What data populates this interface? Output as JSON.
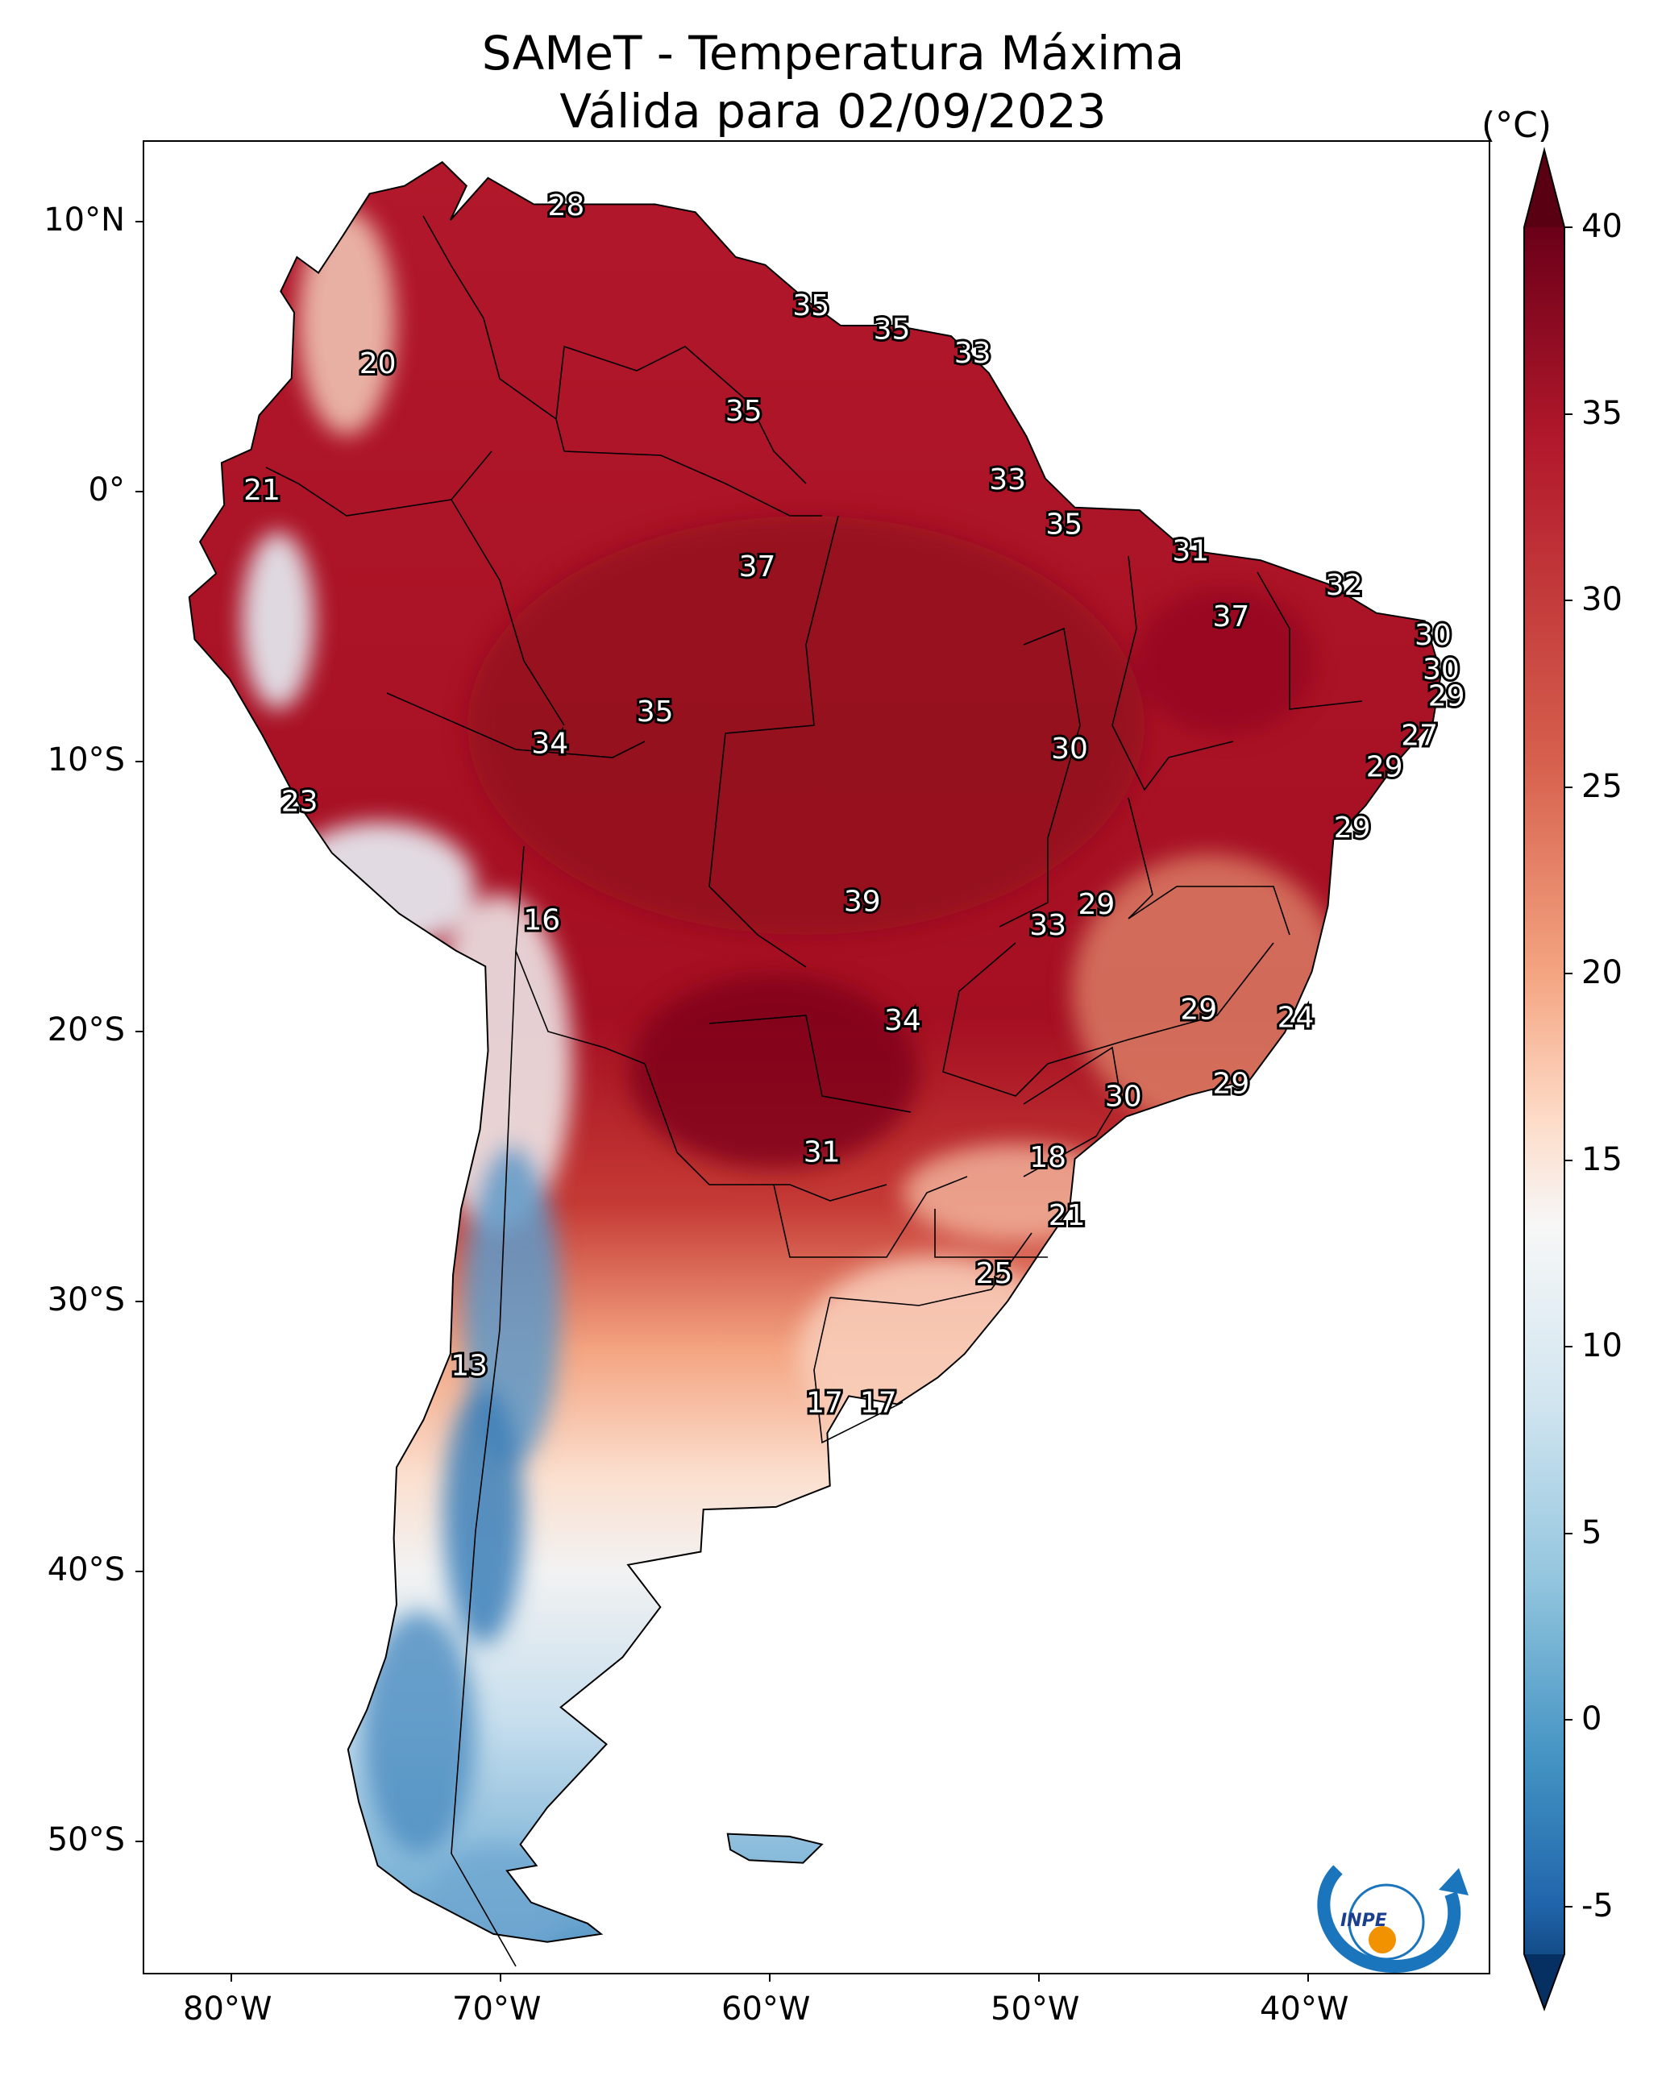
{
  "title": {
    "line1": "SAMeT - Temperatura Máxima",
    "line2": "Válida para 02/09/2023"
  },
  "axes": {
    "lon_ticks": [
      "80°W",
      "70°W",
      "60°W",
      "50°W",
      "40°W"
    ],
    "lat_ticks": [
      "10°N",
      "0°",
      "10°S",
      "20°S",
      "30°S",
      "40°S",
      "50°S"
    ],
    "lon_range": [
      -83,
      -33
    ],
    "lat_range": [
      -56.5,
      13
    ]
  },
  "colorbar": {
    "unit": "(°C)",
    "ticks": [
      "40",
      "35",
      "30",
      "25",
      "20",
      "15",
      "10",
      "5",
      "0",
      "-5"
    ],
    "range": [
      -5,
      40
    ]
  },
  "labels": [
    {
      "text": "28",
      "lon": -67.3,
      "lat": 10.5
    },
    {
      "text": "35",
      "lon": -58.2,
      "lat": 6.7
    },
    {
      "text": "35",
      "lon": -55.2,
      "lat": 5.8
    },
    {
      "text": "33",
      "lon": -52.2,
      "lat": 4.9
    },
    {
      "text": "20",
      "lon": -74.3,
      "lat": 4.5
    },
    {
      "text": "35",
      "lon": -60.7,
      "lat": 2.7
    },
    {
      "text": "33",
      "lon": -50.9,
      "lat": 0.1
    },
    {
      "text": "21",
      "lon": -78.6,
      "lat": -0.3
    },
    {
      "text": "35",
      "lon": -48.8,
      "lat": -1.6
    },
    {
      "text": "31",
      "lon": -44.1,
      "lat": -2.6
    },
    {
      "text": "37",
      "lon": -60.2,
      "lat": -3.2
    },
    {
      "text": "32",
      "lon": -38.4,
      "lat": -3.9
    },
    {
      "text": "37",
      "lon": -42.6,
      "lat": -5.1
    },
    {
      "text": "30",
      "lon": -35.1,
      "lat": -5.8
    },
    {
      "text": "30",
      "lon": -34.8,
      "lat": -7.1
    },
    {
      "text": "29",
      "lon": -34.6,
      "lat": -8.1
    },
    {
      "text": "35",
      "lon": -64.0,
      "lat": -8.7
    },
    {
      "text": "27",
      "lon": -35.6,
      "lat": -9.6
    },
    {
      "text": "34",
      "lon": -67.9,
      "lat": -9.9
    },
    {
      "text": "30",
      "lon": -48.6,
      "lat": -10.1
    },
    {
      "text": "29",
      "lon": -36.9,
      "lat": -10.8
    },
    {
      "text": "23",
      "lon": -77.2,
      "lat": -12.1
    },
    {
      "text": "29",
      "lon": -38.1,
      "lat": -13.1
    },
    {
      "text": "39",
      "lon": -56.3,
      "lat": -15.9
    },
    {
      "text": "29",
      "lon": -47.6,
      "lat": -16.0
    },
    {
      "text": "16",
      "lon": -68.2,
      "lat": -16.6
    },
    {
      "text": "33",
      "lon": -49.4,
      "lat": -16.8
    },
    {
      "text": "29",
      "lon": -43.8,
      "lat": -20.0
    },
    {
      "text": "24",
      "lon": -40.2,
      "lat": -20.3
    },
    {
      "text": "34",
      "lon": -54.8,
      "lat": -20.4
    },
    {
      "text": "29",
      "lon": -42.6,
      "lat": -22.8
    },
    {
      "text": "30",
      "lon": -46.6,
      "lat": -23.3
    },
    {
      "text": "18",
      "lon": -49.4,
      "lat": -25.6
    },
    {
      "text": "31",
      "lon": -57.8,
      "lat": -25.4
    },
    {
      "text": "21",
      "lon": -48.7,
      "lat": -27.8
    },
    {
      "text": "25",
      "lon": -51.4,
      "lat": -30.0
    },
    {
      "text": "13",
      "lon": -70.9,
      "lat": -33.5
    },
    {
      "text": "17",
      "lon": -57.7,
      "lat": -34.9
    },
    {
      "text": "17",
      "lon": -55.7,
      "lat": -34.9
    }
  ],
  "logo": {
    "text": "INPE"
  }
}
